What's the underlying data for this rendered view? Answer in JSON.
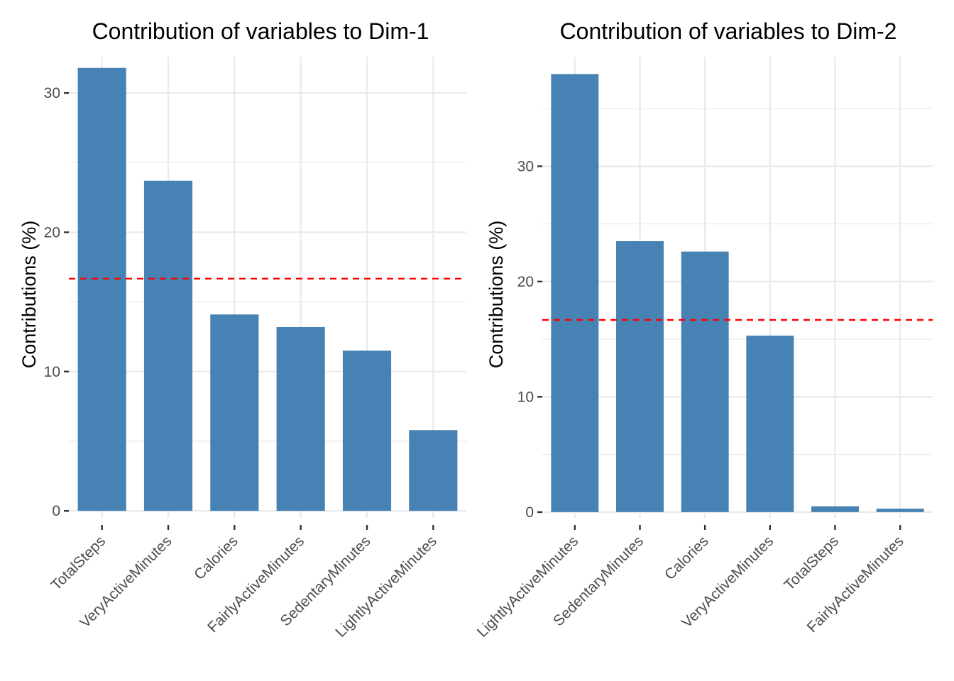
{
  "chart_data": [
    {
      "type": "bar",
      "title": "Contribution of variables to Dim-1",
      "xlabel": "",
      "ylabel": "Contributions (%)",
      "categories": [
        "TotalSteps",
        "VeryActiveMinutes",
        "Calories",
        "FairlyActiveMinutes",
        "SedentaryMinutes",
        "LightlyActiveMinutes"
      ],
      "values": [
        31.8,
        23.7,
        14.1,
        13.2,
        11.5,
        5.8
      ],
      "reference_line": 16.67,
      "reference_color": "#ff0000",
      "bar_color": "#4682b4",
      "ylim": [
        -0.5,
        32.6
      ],
      "yticks": [
        0,
        10,
        20,
        30
      ],
      "grid": true
    },
    {
      "type": "bar",
      "title": "Contribution of variables to Dim-2",
      "xlabel": "",
      "ylabel": "Contributions (%)",
      "categories": [
        "LightlyActiveMinutes",
        "SedentaryMinutes",
        "Calories",
        "VeryActiveMinutes",
        "TotalSteps",
        "FairlyActiveMinutes"
      ],
      "values": [
        38.0,
        23.5,
        22.6,
        15.3,
        0.5,
        0.3
      ],
      "reference_line": 16.67,
      "reference_color": "#ff0000",
      "bar_color": "#4682b4",
      "ylim": [
        -0.5,
        39.5
      ],
      "yticks": [
        0,
        10,
        20,
        30
      ],
      "grid": true
    }
  ]
}
